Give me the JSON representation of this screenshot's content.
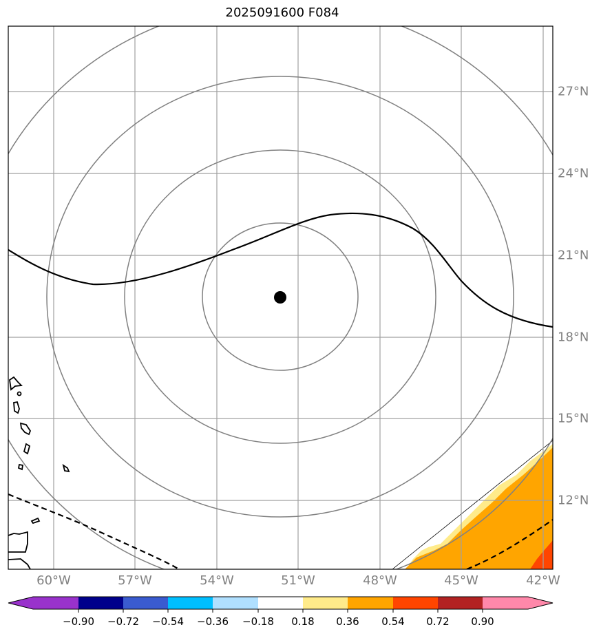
{
  "title": "2025091600 F084",
  "map": {
    "lon_ticks": [
      "60°W",
      "57°W",
      "54°W",
      "51°W",
      "48°W",
      "45°W",
      "42°W"
    ],
    "lat_ticks": [
      "27°N",
      "24°N",
      "21°N",
      "18°N",
      "15°N",
      "12°N"
    ],
    "storm_center": {
      "lon": -51.0,
      "lat": 19.5
    },
    "grid_color": "#a0a0a0",
    "range_ring_color": "#808080",
    "coastline_color": "#000000"
  },
  "colorbar": {
    "tick_labels": [
      "−0.90",
      "−0.72",
      "−0.54",
      "−0.36",
      "−0.18",
      "0.18",
      "0.36",
      "0.54",
      "0.72",
      "0.90"
    ],
    "colors": [
      "#9932cc",
      "#00008b",
      "#3a5bd0",
      "#00bfff",
      "#b0e0ff",
      "#ffffff",
      "#ffeb8a",
      "#ffa500",
      "#ff4500",
      "#b22222",
      "#ff88aa"
    ]
  }
}
